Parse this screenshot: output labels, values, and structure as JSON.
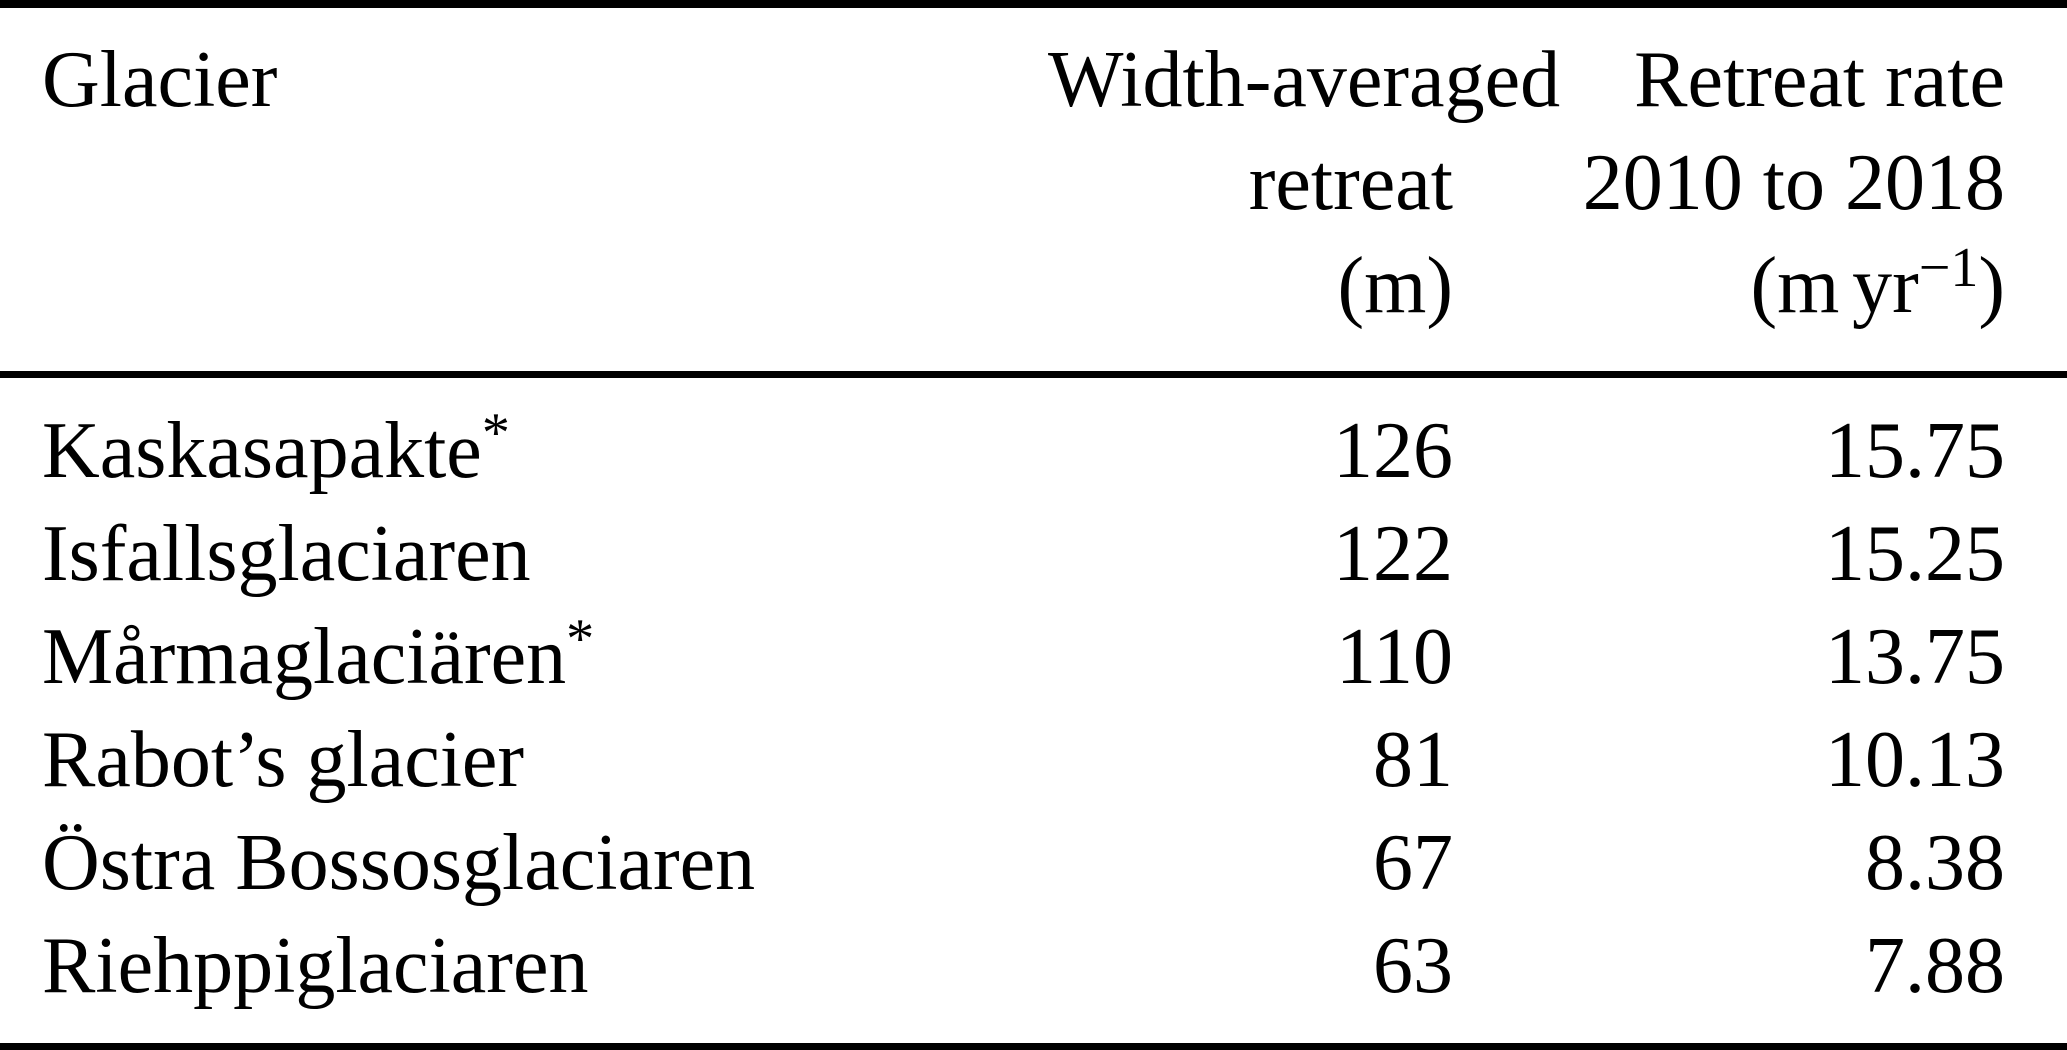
{
  "table": {
    "header": {
      "col1": "Glacier",
      "col2_line1": "Width-averaged",
      "col2_line2": "retreat",
      "col2_line3": "(m)",
      "col3_line1": "Retreat rate",
      "col3_line2": "2010 to 2018",
      "col3_unit_prefix": "(m",
      "col3_unit_word": "yr",
      "col3_unit_sup": "−1",
      "col3_unit_suffix": ")"
    },
    "rows": [
      {
        "name": "Kaskasapakte",
        "marker": "*",
        "width_averaged_retreat_m": "126",
        "retreat_rate_m_per_yr": "15.75"
      },
      {
        "name": "Isfallsglaciaren",
        "marker": "",
        "width_averaged_retreat_m": "122",
        "retreat_rate_m_per_yr": "15.25"
      },
      {
        "name": "Mårmaglaciären",
        "marker": "*",
        "width_averaged_retreat_m": "110",
        "retreat_rate_m_per_yr": "13.75"
      },
      {
        "name": "Rabot’s glacier",
        "marker": "",
        "width_averaged_retreat_m": "81",
        "retreat_rate_m_per_yr": "10.13"
      },
      {
        "name": "Östra Bossosglaciaren",
        "marker": "",
        "width_averaged_retreat_m": "67",
        "retreat_rate_m_per_yr": "8.38"
      },
      {
        "name": "Riehppiglaciaren",
        "marker": "",
        "width_averaged_retreat_m": "63",
        "retreat_rate_m_per_yr": "7.88"
      }
    ],
    "colors": {
      "text": "#000000",
      "background": "#ffffff",
      "rule": "#000000"
    }
  }
}
